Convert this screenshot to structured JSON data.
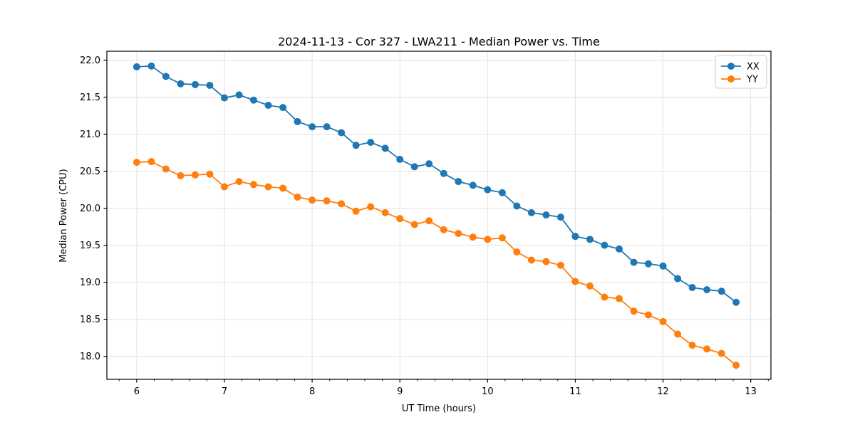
{
  "chart_data": {
    "type": "line",
    "title": "2024-11-13 - Cor 327 - LWA211 - Median Power vs. Time",
    "xlabel": "UT Time (hours)",
    "ylabel": "Median Power (CPU)",
    "xlim": [
      5.66,
      13.23
    ],
    "ylim": [
      17.69,
      22.12
    ],
    "x_major_ticks": [
      6,
      7,
      8,
      9,
      10,
      11,
      12,
      13
    ],
    "x_minor_tick_step": 0.2,
    "y_major_ticks": [
      18.0,
      18.5,
      19.0,
      19.5,
      20.0,
      20.5,
      21.0,
      21.5,
      22.0
    ],
    "grid": true,
    "legend_position": "upper right",
    "marker": "o",
    "x": [
      6.0,
      6.167,
      6.333,
      6.5,
      6.667,
      6.833,
      7.0,
      7.167,
      7.333,
      7.5,
      7.667,
      7.833,
      8.0,
      8.167,
      8.333,
      8.5,
      8.667,
      8.833,
      9.0,
      9.167,
      9.333,
      9.5,
      9.667,
      9.833,
      10.0,
      10.167,
      10.333,
      10.5,
      10.667,
      10.833,
      11.0,
      11.167,
      11.333,
      11.5,
      11.667,
      11.833,
      12.0,
      12.167,
      12.333,
      12.5,
      12.667,
      12.833
    ],
    "series": [
      {
        "name": "XX",
        "color": "#1f77b4",
        "values": [
          21.91,
          21.92,
          21.78,
          21.68,
          21.67,
          21.66,
          21.49,
          21.53,
          21.46,
          21.39,
          21.36,
          21.17,
          21.1,
          21.1,
          21.02,
          20.85,
          20.89,
          20.81,
          20.66,
          20.56,
          20.6,
          20.47,
          20.36,
          20.31,
          20.25,
          20.21,
          20.03,
          19.94,
          19.91,
          19.88,
          19.62,
          19.58,
          19.5,
          19.45,
          19.27,
          19.25,
          19.22,
          19.05,
          18.93,
          18.9,
          18.88,
          18.73
        ]
      },
      {
        "name": "YY",
        "color": "#ff7f0e",
        "values": [
          20.62,
          20.63,
          20.53,
          20.44,
          20.45,
          20.46,
          20.29,
          20.36,
          20.32,
          20.29,
          20.27,
          20.15,
          20.11,
          20.1,
          20.06,
          19.96,
          20.02,
          19.94,
          19.86,
          19.78,
          19.83,
          19.71,
          19.66,
          19.61,
          19.58,
          19.6,
          19.41,
          19.3,
          19.28,
          19.23,
          19.01,
          18.95,
          18.8,
          18.78,
          18.61,
          18.56,
          18.47,
          18.3,
          18.15,
          18.1,
          18.04,
          17.88
        ]
      }
    ],
    "colors": {
      "grid": "#e3e3e3",
      "spine": "#000000",
      "legend_border": "#cccccc",
      "background": "#ffffff"
    }
  }
}
